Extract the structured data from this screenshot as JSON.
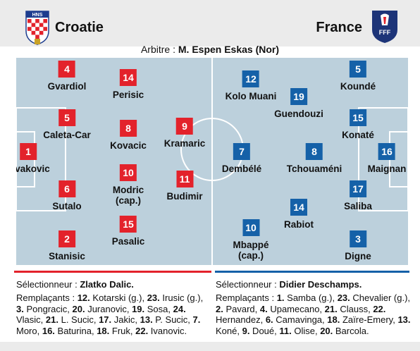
{
  "header": {
    "home_team": "Croatie",
    "away_team": "France",
    "home_crest_letters": "HNS",
    "away_crest_letters": "FFF"
  },
  "referee": {
    "label": "Arbitre : ",
    "name": "M. Espen Eskas (Nor)"
  },
  "home": {
    "players": [
      {
        "num": "1",
        "name": "Livakovic"
      },
      {
        "num": "2",
        "name": "Stanisic"
      },
      {
        "num": "4",
        "name": "Gvardiol"
      },
      {
        "num": "5",
        "name": "Caleta-Car"
      },
      {
        "num": "6",
        "name": "Sutalo"
      },
      {
        "num": "8",
        "name": "Kovacic"
      },
      {
        "num": "10",
        "name": "Modric",
        "extra": "(cap.)"
      },
      {
        "num": "14",
        "name": "Perisic"
      },
      {
        "num": "15",
        "name": "Pasalic"
      },
      {
        "num": "9",
        "name": "Kramaric"
      },
      {
        "num": "11",
        "name": "Budimir"
      }
    ],
    "coach_label": "Sélectionneur : ",
    "coach_name": "Zlatko Dalic.",
    "subs_label": "Remplaçants : ",
    "subs": [
      {
        "n": "12.",
        "t": " Kotarski (g.), "
      },
      {
        "n": "23.",
        "t": " Irusic (g.), "
      },
      {
        "n": "3.",
        "t": " Pongracic, "
      },
      {
        "n": "20.",
        "t": " Juranovic, "
      },
      {
        "n": "19.",
        "t": " Sosa, "
      },
      {
        "n": "24.",
        "t": " Vlasic, "
      },
      {
        "n": "21.",
        "t": " L. Sucic, "
      },
      {
        "n": "17.",
        "t": " Jakic, "
      },
      {
        "n": "13.",
        "t": " P. Sucic, "
      },
      {
        "n": "7.",
        "t": " Moro, "
      },
      {
        "n": "16.",
        "t": " Baturina, "
      },
      {
        "n": "18.",
        "t": " Fruk, "
      },
      {
        "n": "22.",
        "t": " Ivanovic."
      }
    ]
  },
  "away": {
    "players": [
      {
        "num": "12",
        "name": "Kolo Muani"
      },
      {
        "num": "19",
        "name": "Guendouzi"
      },
      {
        "num": "7",
        "name": "Dembélé"
      },
      {
        "num": "8",
        "name": "Tchouaméni"
      },
      {
        "num": "14",
        "name": "Rabiot"
      },
      {
        "num": "10",
        "name": "Mbappé",
        "extra": "(cap.)"
      },
      {
        "num": "5",
        "name": "Koundé"
      },
      {
        "num": "15",
        "name": "Konaté"
      },
      {
        "num": "17",
        "name": "Saliba"
      },
      {
        "num": "3",
        "name": "Digne"
      },
      {
        "num": "16",
        "name": "Maignan"
      }
    ],
    "coach_label": "Sélectionneur : ",
    "coach_name": "Didier Deschamps.",
    "subs_label": "Remplaçants : ",
    "subs": [
      {
        "n": "1.",
        "t": " Samba (g.), "
      },
      {
        "n": "23.",
        "t": " Chevalier (g.), "
      },
      {
        "n": "2.",
        "t": " Pavard, "
      },
      {
        "n": "4.",
        "t": " Upamecano, "
      },
      {
        "n": "21.",
        "t": " Clauss, "
      },
      {
        "n": "22.",
        "t": " Hernandez, "
      },
      {
        "n": "6.",
        "t": " Camavinga, "
      },
      {
        "n": "18.",
        "t": " Zaïre-Emery, "
      },
      {
        "n": "13.",
        "t": " Koné, "
      },
      {
        "n": "9.",
        "t": " Doué, "
      },
      {
        "n": "11.",
        "t": " Olise, "
      },
      {
        "n": "20.",
        "t": " Barcola."
      }
    ]
  },
  "colors": {
    "home_accent": "#e3222b",
    "away_accent": "#1561a8",
    "pitch": "#bcd0dc"
  }
}
